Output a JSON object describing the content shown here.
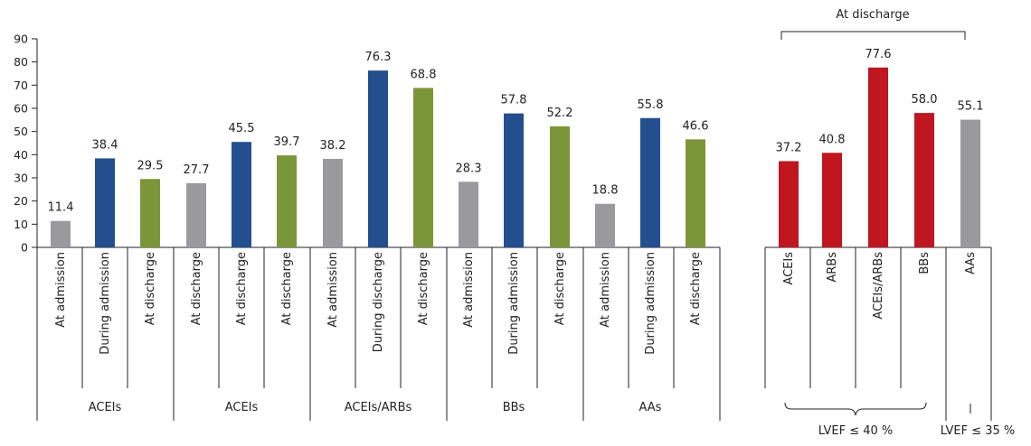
{
  "chart_data": {
    "type": "bar",
    "ylim": [
      0,
      90
    ],
    "yticks": [
      0,
      10,
      20,
      30,
      40,
      50,
      60,
      70,
      80,
      90
    ],
    "bars": [
      {
        "category": "At admission",
        "group": "ACEIs",
        "value": 11.4,
        "label": "11.4",
        "series": "at-admission"
      },
      {
        "category": "During admission",
        "group": "ACEIs",
        "value": 38.4,
        "label": "38.4",
        "series": "during"
      },
      {
        "category": "At discharge",
        "group": "ACEIs",
        "value": 29.5,
        "label": "29.5",
        "series": "at-discharge"
      },
      {
        "category": "At discharge",
        "group": "ACEIs",
        "value": 27.7,
        "label": "27.7",
        "series": "at-admission"
      },
      {
        "category": "At discharge",
        "group": "ACEIs",
        "value": 45.5,
        "label": "45.5",
        "series": "during"
      },
      {
        "category": "At discharge",
        "group": "ACEIs",
        "value": 39.7,
        "label": "39.7",
        "series": "at-discharge"
      },
      {
        "category": "At admission",
        "group": "ACEIs/ARBs",
        "value": 38.2,
        "label": "38.2",
        "series": "at-admission"
      },
      {
        "category": "During discharge",
        "group": "ACEIs/ARBs",
        "value": 76.3,
        "label": "76.3",
        "series": "during"
      },
      {
        "category": "At discharge",
        "group": "ACEIs/ARBs",
        "value": 68.8,
        "label": "68.8",
        "series": "at-discharge"
      },
      {
        "category": "At admission",
        "group": "BBs",
        "value": 28.3,
        "label": "28.3",
        "series": "at-admission"
      },
      {
        "category": "During admission",
        "group": "BBs",
        "value": 57.8,
        "label": "57.8",
        "series": "during"
      },
      {
        "category": "At discharge",
        "group": "BBs",
        "value": 52.2,
        "label": "52.2",
        "series": "at-discharge"
      },
      {
        "category": "At admission",
        "group": "AAs",
        "value": 18.8,
        "label": "18.8",
        "series": "at-admission"
      },
      {
        "category": "During admission",
        "group": "AAs",
        "value": 55.8,
        "label": "55.8",
        "series": "during"
      },
      {
        "category": "At discharge",
        "group": "AAs",
        "value": 46.6,
        "label": "46.6",
        "series": "at-discharge"
      },
      {
        "category": "ACEIs",
        "group": "LVEF ≤ 40 %",
        "value": 37.2,
        "label": "37.2",
        "series": "lvef"
      },
      {
        "category": "ARBs",
        "group": "LVEF ≤ 40 %",
        "value": 40.8,
        "label": "40.8",
        "series": "lvef"
      },
      {
        "category": "ACEIs/ARBs",
        "group": "LVEF ≤ 40 %",
        "value": 77.6,
        "label": "77.6",
        "series": "lvef"
      },
      {
        "category": "BBs",
        "group": "LVEF ≤ 40 %",
        "value": 58.0,
        "label": "58.0",
        "series": "lvef"
      },
      {
        "category": "AAs",
        "group": "LVEF ≤ 35 %",
        "value": 55.1,
        "label": "55.1",
        "series": "at-admission"
      }
    ],
    "group_labels": [
      "ACEIs",
      "ACEIs",
      "ACEIs/ARBs",
      "BBs",
      "AAs"
    ],
    "lvef_labels": {
      "le40": "LVEF ≤ 40 %",
      "le35": "LVEF ≤ 35 %",
      "bracket_top": "At discharge"
    },
    "colors": {
      "at-admission": "#9a9a9e",
      "during": "#234f8f",
      "at-discharge": "#7b9638",
      "lvef": "#bf1620"
    }
  }
}
